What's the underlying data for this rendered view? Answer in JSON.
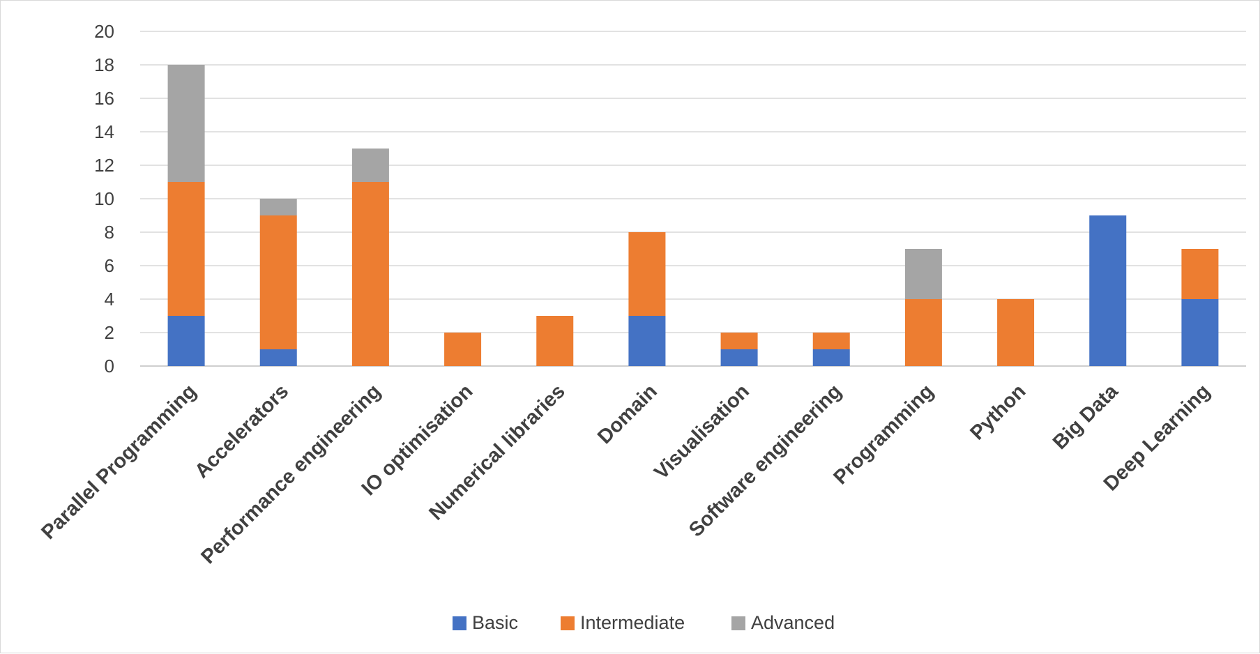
{
  "chart_data": {
    "type": "bar",
    "stacked": true,
    "categories": [
      "Parallel Programming",
      "Accelerators",
      "Performance engineering",
      "IO optimisation",
      "Numerical libraries",
      "Domain",
      "Visualisation",
      "Software engineering",
      "Programming",
      "Python",
      "Big Data",
      "Deep Learning"
    ],
    "series": [
      {
        "name": "Basic",
        "color": "#4472c4",
        "values": [
          3,
          1,
          0,
          0,
          0,
          3,
          1,
          1,
          0,
          0,
          9,
          4
        ]
      },
      {
        "name": "Intermediate",
        "color": "#ed7d31",
        "values": [
          8,
          8,
          11,
          2,
          3,
          5,
          1,
          1,
          4,
          4,
          0,
          3
        ]
      },
      {
        "name": "Advanced",
        "color": "#a5a5a5",
        "values": [
          7,
          1,
          2,
          0,
          0,
          0,
          0,
          0,
          3,
          0,
          0,
          0
        ]
      }
    ],
    "ylim": [
      0,
      20
    ],
    "yticks": [
      0,
      2,
      4,
      6,
      8,
      10,
      12,
      14,
      16,
      18,
      20
    ],
    "xlabel": "",
    "ylabel": "",
    "title": "",
    "grid": true,
    "legend_position": "bottom"
  }
}
